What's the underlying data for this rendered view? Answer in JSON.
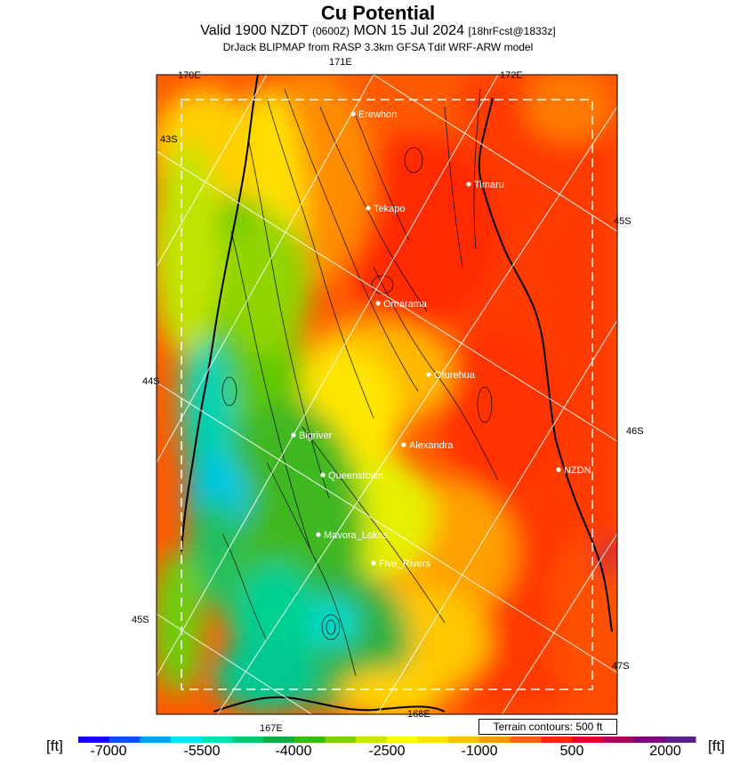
{
  "title": "Cu Potential",
  "subtitle_main": "Valid 1900 NZDT",
  "subtitle_zone": "(0600Z)",
  "subtitle_date": "MON 15 Jul 2024",
  "subtitle_fcst": "[18hrFcst@1833z]",
  "subtitle2": "DrJack BLIPMAP from RASP 3.3km GFSA Tdif WRF-ARW model",
  "map_labels": {
    "lon_170e": "170E",
    "lon_171e": "171E",
    "lon_172e": "172E",
    "lon_167e": "167E",
    "lon_168e": "168E",
    "lat_43s": "43S",
    "lat_44s": "44S",
    "lat_45s_left": "45S",
    "lat_45s_right": "45S",
    "lat_46s": "46S",
    "lat_47s": "47S"
  },
  "places": [
    {
      "id": "erewhon",
      "name": "Erewhon"
    },
    {
      "id": "timaru",
      "name": "Timaru"
    },
    {
      "id": "tekapo",
      "name": "Tekapo"
    },
    {
      "id": "omarama",
      "name": "Omarama"
    },
    {
      "id": "oturehua",
      "name": "Oturehua"
    },
    {
      "id": "bigriver",
      "name": "Bigriver"
    },
    {
      "id": "alexandra",
      "name": "Alexandra"
    },
    {
      "id": "nzdn",
      "name": "NZDN"
    },
    {
      "id": "queenstown",
      "name": "Queenstown"
    },
    {
      "id": "mavora",
      "name": "Mavora_Lakes"
    },
    {
      "id": "fiverivers",
      "name": "Five_Rivers"
    }
  ],
  "terrain_note": "Terrain contours: 500 ft",
  "legend": {
    "unit_left": "[ft]",
    "unit_right": "[ft]",
    "tick_labels": [
      "-7000",
      "-5500",
      "-4000",
      "-2500",
      "-1000",
      "500",
      "2000"
    ],
    "colors": [
      "#1a00ff",
      "#0052ff",
      "#00a0ff",
      "#00e6ff",
      "#00e0b0",
      "#00c870",
      "#00b040",
      "#30c000",
      "#80d000",
      "#c8e600",
      "#ffff00",
      "#ffe000",
      "#ffc000",
      "#ff9800",
      "#ff6000",
      "#ff2800",
      "#e00030",
      "#b0005a",
      "#800080",
      "#5a2090"
    ]
  }
}
